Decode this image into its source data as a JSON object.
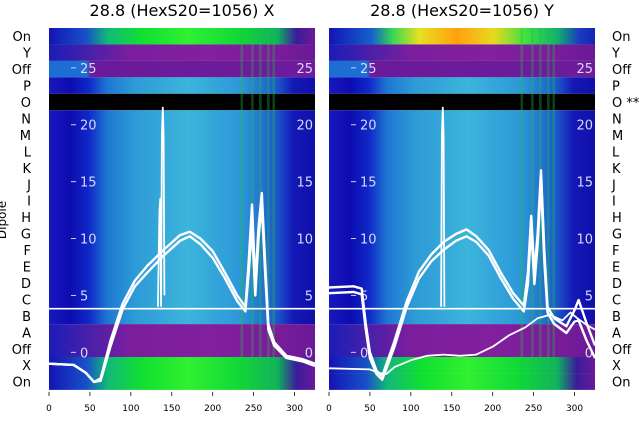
{
  "chart_data": [
    {
      "type": "heatmap",
      "title": "28.8 (HexS20=1056) X",
      "ylabel": "Dipole",
      "row_labels": [
        "On",
        "Y",
        "Off",
        "P",
        "O",
        "N",
        "M",
        "L",
        "K",
        "J",
        "I",
        "H",
        "G",
        "F",
        "E",
        "D",
        "C",
        "B",
        "A",
        "Off",
        "X",
        "On"
      ],
      "xlim": [
        0,
        325
      ],
      "x_ticks": [
        0,
        50,
        100,
        150,
        200,
        250,
        300
      ],
      "overlay_ylim": [
        -3.3,
        28.5
      ],
      "overlay_ticks": [
        0,
        5,
        10,
        15,
        20,
        25
      ],
      "bands": [
        {
          "rows": [
            0,
            0
          ],
          "pattern": "bright"
        },
        {
          "rows": [
            1,
            1
          ],
          "pattern": "purple"
        },
        {
          "rows": [
            2,
            2
          ],
          "pattern": "gap"
        },
        {
          "rows": [
            3,
            3
          ],
          "pattern": "blue"
        },
        {
          "rows": [
            4,
            4
          ],
          "pattern": "black"
        },
        {
          "rows": [
            5,
            17
          ],
          "pattern": "blue"
        },
        {
          "rows": [
            18,
            19
          ],
          "pattern": "purple"
        },
        {
          "rows": [
            20,
            21
          ],
          "pattern": "bright"
        }
      ],
      "series": [
        {
          "values": [
            [
              0,
              -1
            ],
            [
              30,
              -1.1
            ],
            [
              45,
              -1.8
            ],
            [
              55,
              -2.6
            ],
            [
              63,
              -2.5
            ],
            [
              75,
              0.5
            ],
            [
              90,
              3.8
            ],
            [
              105,
              5.8
            ],
            [
              120,
              7
            ],
            [
              140,
              8.5
            ],
            [
              160,
              9.8
            ],
            [
              172,
              10.2
            ],
            [
              185,
              9.5
            ],
            [
              200,
              8.3
            ],
            [
              215,
              6.5
            ],
            [
              230,
              4.5
            ],
            [
              240,
              3.6
            ],
            [
              244,
              7
            ],
            [
              248,
              11
            ],
            [
              252,
              5
            ],
            [
              256,
              10
            ],
            [
              260,
              13
            ],
            [
              264,
              7
            ],
            [
              268,
              2
            ],
            [
              275,
              0.6
            ],
            [
              290,
              -0.5
            ],
            [
              310,
              -0.8
            ],
            [
              325,
              -1.2
            ]
          ]
        },
        {
          "values": [
            [
              0,
              -1
            ],
            [
              30,
              -1.1
            ],
            [
              45,
              -1.8
            ],
            [
              55,
              -2.6
            ],
            [
              63,
              -2.3
            ],
            [
              75,
              1
            ],
            [
              90,
              4.3
            ],
            [
              105,
              6.3
            ],
            [
              120,
              7.6
            ],
            [
              140,
              9
            ],
            [
              160,
              10.3
            ],
            [
              172,
              10.6
            ],
            [
              185,
              10
            ],
            [
              200,
              8.9
            ],
            [
              215,
              7
            ],
            [
              230,
              5
            ],
            [
              240,
              4
            ],
            [
              244,
              8
            ],
            [
              248,
              13
            ],
            [
              252,
              6
            ],
            [
              256,
              11
            ],
            [
              260,
              14
            ],
            [
              264,
              8
            ],
            [
              268,
              2.5
            ],
            [
              275,
              0.9
            ],
            [
              290,
              -0.3
            ],
            [
              310,
              -0.6
            ],
            [
              325,
              -1
            ]
          ]
        },
        {
          "values": [
            [
              133,
              4
            ],
            [
              135,
              12.5
            ],
            [
              136,
              13.5
            ],
            [
              137,
              4
            ]
          ]
        },
        {
          "values": [
            [
              137,
              5
            ],
            [
              138,
              19
            ],
            [
              139,
              21.5
            ],
            [
              140,
              19
            ],
            [
              141,
              5
            ]
          ]
        }
      ]
    },
    {
      "type": "heatmap",
      "title": "28.8 (HexS20=1056) Y",
      "row_labels": [
        "On",
        "Y",
        "Off",
        "P",
        "O **",
        "N",
        "M",
        "L",
        "K",
        "J",
        "I",
        "H",
        "G",
        "F",
        "E",
        "D",
        "C",
        "B",
        "A",
        "Off",
        "X",
        "On"
      ],
      "xlim": [
        0,
        325
      ],
      "x_ticks": [
        0,
        50,
        100,
        150,
        200,
        250,
        300
      ],
      "overlay_ylim": [
        -3.3,
        28.5
      ],
      "overlay_ticks": [
        0,
        5,
        10,
        15,
        20,
        25
      ],
      "bands": [
        {
          "rows": [
            0,
            0
          ],
          "pattern": "bright"
        },
        {
          "rows": [
            1,
            1
          ],
          "pattern": "purple"
        },
        {
          "rows": [
            2,
            2
          ],
          "pattern": "gap"
        },
        {
          "rows": [
            3,
            3
          ],
          "pattern": "blue"
        },
        {
          "rows": [
            4,
            4
          ],
          "pattern": "black"
        },
        {
          "rows": [
            5,
            17
          ],
          "pattern": "blue"
        },
        {
          "rows": [
            18,
            19
          ],
          "pattern": "purple"
        },
        {
          "rows": [
            20,
            20
          ],
          "pattern": "bright"
        },
        {
          "rows": [
            21,
            21
          ],
          "pattern": "bright"
        }
      ],
      "series": [
        {
          "values": [
            [
              0,
              5.2
            ],
            [
              30,
              5.3
            ],
            [
              40,
              5.1
            ],
            [
              45,
              2
            ],
            [
              50,
              -0.5
            ],
            [
              58,
              -1.9
            ],
            [
              65,
              -2.4
            ],
            [
              80,
              0.5
            ],
            [
              95,
              4
            ],
            [
              110,
              6.5
            ],
            [
              125,
              8
            ],
            [
              140,
              9
            ],
            [
              155,
              9.8
            ],
            [
              168,
              10.2
            ],
            [
              180,
              9.7
            ],
            [
              195,
              8.5
            ],
            [
              210,
              6.5
            ],
            [
              225,
              4.7
            ],
            [
              238,
              3.6
            ],
            [
              243,
              6
            ],
            [
              247,
              11
            ],
            [
              251,
              6
            ],
            [
              255,
              9.5
            ],
            [
              259,
              15
            ],
            [
              263,
              8
            ],
            [
              267,
              3.5
            ],
            [
              275,
              2.5
            ],
            [
              290,
              1.7
            ],
            [
              300,
              2.7
            ],
            [
              305,
              2.8
            ],
            [
              315,
              1
            ],
            [
              325,
              -0.5
            ]
          ]
        },
        {
          "values": [
            [
              0,
              5.7
            ],
            [
              30,
              5.8
            ],
            [
              40,
              5.6
            ],
            [
              45,
              2.5
            ],
            [
              50,
              0
            ],
            [
              58,
              -1.6
            ],
            [
              65,
              -2.1
            ],
            [
              80,
              1
            ],
            [
              95,
              4.5
            ],
            [
              110,
              7.1
            ],
            [
              125,
              8.6
            ],
            [
              140,
              9.7
            ],
            [
              155,
              10.4
            ],
            [
              168,
              10.8
            ],
            [
              180,
              10.2
            ],
            [
              195,
              9
            ],
            [
              210,
              7
            ],
            [
              225,
              5.2
            ],
            [
              238,
              4.1
            ],
            [
              243,
              7
            ],
            [
              247,
              12
            ],
            [
              251,
              7
            ],
            [
              255,
              10.5
            ],
            [
              259,
              16
            ],
            [
              263,
              9
            ],
            [
              267,
              4
            ],
            [
              275,
              3
            ],
            [
              290,
              2.3
            ],
            [
              300,
              3.7
            ],
            [
              305,
              4.6
            ],
            [
              315,
              2.5
            ],
            [
              325,
              0.6
            ]
          ]
        },
        {
          "values": [
            [
              0,
              -1.4
            ],
            [
              50,
              -1.5
            ],
            [
              60,
              -1.8
            ],
            [
              70,
              -1.9
            ],
            [
              80,
              -1.3
            ],
            [
              100,
              -0.7
            ],
            [
              120,
              -0.3
            ],
            [
              140,
              -0.2
            ],
            [
              160,
              -0.3
            ],
            [
              180,
              -0.2
            ],
            [
              200,
              0.5
            ],
            [
              220,
              1.5
            ],
            [
              240,
              2.2
            ],
            [
              255,
              3
            ],
            [
              270,
              3.3
            ],
            [
              285,
              2.8
            ],
            [
              295,
              3.5
            ],
            [
              305,
              2.9
            ],
            [
              315,
              2.4
            ],
            [
              325,
              2
            ]
          ]
        },
        {
          "values": [
            [
              137,
              4
            ],
            [
              138,
              19
            ],
            [
              139,
              21.5
            ],
            [
              140,
              19
            ],
            [
              141,
              4
            ]
          ]
        }
      ]
    }
  ]
}
